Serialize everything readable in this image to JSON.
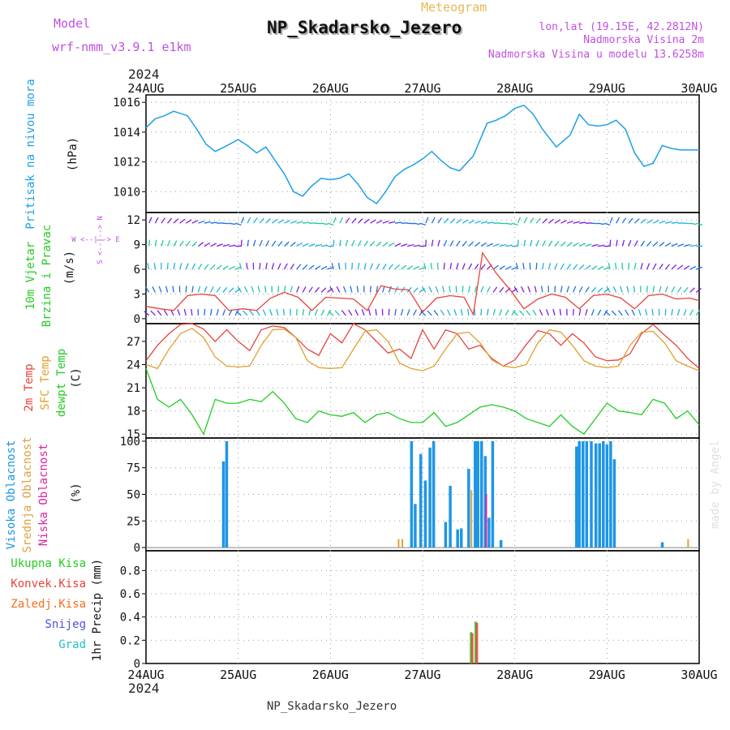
{
  "header": {
    "title": "NP_Skadarsko_Jezero",
    "meteogram_label": "Meteogram",
    "model_label": "Model",
    "model_name": "wrf-nmm_v3.9.1 e1km",
    "lonlat": "lon,lat (19.15E, 42.2812N)",
    "elevation": "Nadmorska Visina 2m",
    "model_elevation": "Nadmorska Visina u modelu 13.6258m",
    "year_top": "2024",
    "year_bottom": "2024",
    "footer": "NP_Skadarsko_Jezero",
    "credit": "made by Angel"
  },
  "colors": {
    "pressure": "#1ea0e6",
    "temp2m": "#e8433a",
    "sfc": "#e0a030",
    "dewpt": "#22cc22",
    "high_cloud": "#1e96e6",
    "mid_cloud": "#e0a040",
    "low_cloud": "#e020a0",
    "total_precip": "#22cc22",
    "conv_precip": "#e8433a",
    "frozen_precip": "#f07020",
    "snow": "#5050e0",
    "hail": "#20c0c0",
    "wind_speed": "#e8433a",
    "model": "#c050e0"
  },
  "chart_data": [
    {
      "type": "line",
      "panel": "pressure",
      "label": "Pritisak na nivou mora",
      "ylabel": "(hPa)",
      "x_ticks": [
        "24AUG",
        "25AUG",
        "26AUG",
        "27AUG",
        "28AUG",
        "29AUG",
        "30AUG"
      ],
      "ylim": [
        1008.6,
        1016.5
      ],
      "y_ticks": [
        1010,
        1012,
        1014,
        1016
      ],
      "x": [
        0,
        0.1,
        0.2,
        0.3,
        0.45,
        0.55,
        0.65,
        0.75,
        0.85,
        1.0,
        1.1,
        1.2,
        1.3,
        1.4,
        1.5,
        1.6,
        1.7,
        1.8,
        1.9,
        2.0,
        2.1,
        2.2,
        2.3,
        2.4,
        2.5,
        2.6,
        2.7,
        2.8,
        2.9,
        3.0,
        3.1,
        3.2,
        3.3,
        3.4,
        3.55,
        3.7,
        3.8,
        3.9,
        4.0,
        4.1,
        4.2,
        4.3,
        4.45,
        4.6,
        4.7,
        4.8,
        4.9,
        5.0,
        5.1,
        5.2,
        5.3,
        5.4,
        5.5,
        5.6,
        5.7,
        5.8,
        5.9,
        6.0
      ],
      "series": [
        {
          "name": "Pritisak na nivou mora",
          "values": [
            1014.3,
            1014.9,
            1015.1,
            1015.4,
            1015.1,
            1014.2,
            1013.2,
            1012.7,
            1013.0,
            1013.5,
            1013.1,
            1012.6,
            1013.0,
            1012.1,
            1011.2,
            1010.0,
            1009.7,
            1010.4,
            1010.9,
            1010.8,
            1010.9,
            1011.2,
            1010.5,
            1009.6,
            1009.2,
            1010.0,
            1011.0,
            1011.5,
            1011.8,
            1012.2,
            1012.7,
            1012.1,
            1011.6,
            1011.4,
            1012.4,
            1014.6,
            1014.8,
            1015.1,
            1015.6,
            1015.8,
            1015.2,
            1014.2,
            1013.0,
            1013.8,
            1015.2,
            1014.5,
            1014.4,
            1014.5,
            1014.8,
            1014.2,
            1012.6,
            1011.7,
            1011.9,
            1013.1,
            1012.9,
            1012.8,
            1012.8,
            1012.8
          ]
        }
      ]
    },
    {
      "type": "line",
      "panel": "wind",
      "label": "10m Vjetar Brzina i Pravac",
      "ylabel": "(m/s)",
      "direction_legend": "W <--|--> E, S <--|--> N",
      "ylim": [
        -0.6,
        12.9
      ],
      "y_ticks": [
        0,
        3,
        6,
        9,
        12
      ],
      "x": [
        0,
        0.15,
        0.3,
        0.45,
        0.6,
        0.75,
        0.9,
        1.05,
        1.2,
        1.35,
        1.5,
        1.65,
        1.8,
        1.95,
        2.1,
        2.25,
        2.4,
        2.55,
        2.7,
        2.85,
        3.0,
        3.15,
        3.3,
        3.45,
        3.55,
        3.65,
        3.8,
        3.95,
        4.1,
        4.25,
        4.4,
        4.55,
        4.7,
        4.85,
        5.0,
        5.15,
        5.3,
        5.45,
        5.6,
        5.75,
        5.9,
        6.0
      ],
      "series": [
        {
          "name": "10m Vjetar Brzina i Pravac",
          "values": [
            1.5,
            1.2,
            1.0,
            2.8,
            3.0,
            2.8,
            1.0,
            1.2,
            1.0,
            2.5,
            3.2,
            2.6,
            1.0,
            2.6,
            2.5,
            2.4,
            1.0,
            4.0,
            3.6,
            3.5,
            0.8,
            2.5,
            2.8,
            2.6,
            0.5,
            8.0,
            5.5,
            3.5,
            1.2,
            2.4,
            3.0,
            2.6,
            1.2,
            2.8,
            3.0,
            2.5,
            1.2,
            2.8,
            3.0,
            2.4,
            2.5,
            2.2
          ]
        }
      ]
    },
    {
      "type": "line",
      "panel": "temperature",
      "labels": [
        "2m Temp",
        "SFC Temp",
        "dewpt Temp"
      ],
      "ylabel": "(C)",
      "ylim": [
        14.5,
        29.3
      ],
      "y_ticks": [
        15,
        18,
        21,
        24,
        27
      ],
      "x": [
        0,
        0.125,
        0.25,
        0.375,
        0.5,
        0.625,
        0.75,
        0.875,
        1.0,
        1.125,
        1.25,
        1.375,
        1.5,
        1.625,
        1.75,
        1.875,
        2.0,
        2.125,
        2.25,
        2.375,
        2.5,
        2.625,
        2.75,
        2.875,
        3.0,
        3.125,
        3.25,
        3.375,
        3.5,
        3.625,
        3.75,
        3.875,
        4.0,
        4.125,
        4.25,
        4.375,
        4.5,
        4.625,
        4.75,
        4.875,
        5.0,
        5.125,
        5.25,
        5.375,
        5.5,
        5.625,
        5.75,
        5.875,
        6.0
      ],
      "series": [
        {
          "name": "2m Temp",
          "values": [
            24.5,
            26.5,
            28.0,
            29.2,
            29.3,
            28.6,
            27.0,
            28.5,
            27.0,
            25.8,
            28.5,
            29.0,
            28.8,
            27.5,
            26.0,
            25.2,
            28.0,
            26.8,
            29.3,
            28.5,
            27.0,
            25.5,
            26.0,
            24.8,
            28.5,
            26.0,
            28.5,
            28.0,
            26.0,
            26.5,
            24.8,
            23.8,
            24.6,
            26.6,
            28.4,
            28.0,
            26.5,
            28.0,
            26.8,
            25.0,
            24.5,
            24.6,
            25.4,
            28.0,
            29.2,
            27.8,
            26.5,
            24.8,
            23.5
          ]
        },
        {
          "name": "SFC Temp",
          "values": [
            24.0,
            23.5,
            26.0,
            28.0,
            28.7,
            27.5,
            25.0,
            23.8,
            23.7,
            23.8,
            26.5,
            28.5,
            28.6,
            27.5,
            24.5,
            23.6,
            23.5,
            23.6,
            26.0,
            28.3,
            28.5,
            27.0,
            24.2,
            23.5,
            23.2,
            23.8,
            26.0,
            28.0,
            28.2,
            26.8,
            24.6,
            23.8,
            23.6,
            24.0,
            26.8,
            28.5,
            28.2,
            26.5,
            24.5,
            23.8,
            23.6,
            23.8,
            26.5,
            28.2,
            28.3,
            26.8,
            24.5,
            23.8,
            23.2
          ]
        },
        {
          "name": "dewpt Temp",
          "values": [
            23.5,
            19.5,
            18.5,
            19.5,
            17.5,
            15.0,
            19.5,
            19.0,
            19.0,
            19.5,
            19.2,
            20.5,
            19.0,
            17.0,
            16.5,
            18.0,
            17.5,
            17.3,
            17.8,
            16.5,
            17.5,
            17.8,
            17.0,
            16.5,
            16.5,
            17.8,
            16.0,
            16.5,
            17.5,
            18.5,
            18.8,
            18.5,
            18.0,
            17.0,
            16.5,
            16.0,
            17.5,
            16.0,
            15.0,
            17.0,
            19.0,
            18.0,
            17.8,
            17.5,
            19.5,
            19.0,
            17.0,
            18.0,
            16.2
          ]
        }
      ]
    },
    {
      "type": "bar",
      "panel": "clouds",
      "labels": [
        "Visoka Oblacnost",
        "Srednja Oblacnost",
        "Niska Oblacnost"
      ],
      "ylabel": "(%)",
      "ylim": [
        -3,
        103
      ],
      "y_ticks": [
        0,
        25,
        50,
        75,
        100
      ],
      "series": [
        {
          "name": "Visoka Oblacnost",
          "x": [
            0.84,
            0.875,
            2.88,
            2.92,
            2.98,
            3.03,
            3.08,
            3.12,
            3.25,
            3.3,
            3.38,
            3.42,
            3.5,
            3.57,
            3.6,
            3.64,
            3.68,
            3.72,
            3.76,
            3.85,
            4.67,
            4.7,
            4.74,
            4.78,
            4.83,
            4.88,
            4.92,
            4.96,
            5.0,
            5.04,
            5.08,
            5.6
          ],
          "values": [
            81,
            100,
            100,
            41,
            88,
            63,
            94,
            100,
            24,
            58,
            17,
            18,
            74,
            100,
            100,
            100,
            86,
            28,
            100,
            7,
            95,
            100,
            100,
            100,
            100,
            98,
            98,
            100,
            97,
            100,
            83,
            5
          ]
        },
        {
          "name": "Srednja Oblacnost",
          "x": [
            2.74,
            2.78,
            3.53,
            5.88
          ],
          "values": [
            8,
            8,
            54,
            8
          ]
        },
        {
          "name": "Niska Oblacnost",
          "x": [
            3.69
          ],
          "values": [
            50
          ]
        }
      ]
    },
    {
      "type": "bar",
      "panel": "precipitation",
      "labels": [
        "Ukupna Kisa",
        "Konvek.Kisa",
        "Zaledj.Kisa",
        "Snijeg",
        "Grad"
      ],
      "ylabel": "1hr Precip (mm)",
      "ylim": [
        0,
        0.97
      ],
      "y_ticks": [
        0,
        0.2,
        0.4,
        0.6,
        0.8
      ],
      "x_ticks": [
        "24AUG",
        "25AUG",
        "26AUG",
        "27AUG",
        "28AUG",
        "29AUG",
        "30AUG"
      ],
      "series": [
        {
          "name": "Ukupna Kisa",
          "x": [
            3.53,
            3.58
          ],
          "values": [
            0.27,
            0.36
          ]
        },
        {
          "name": "Konvek.Kisa",
          "x": [
            3.53,
            3.58
          ],
          "values": [
            0.26,
            0.35
          ]
        }
      ]
    }
  ]
}
